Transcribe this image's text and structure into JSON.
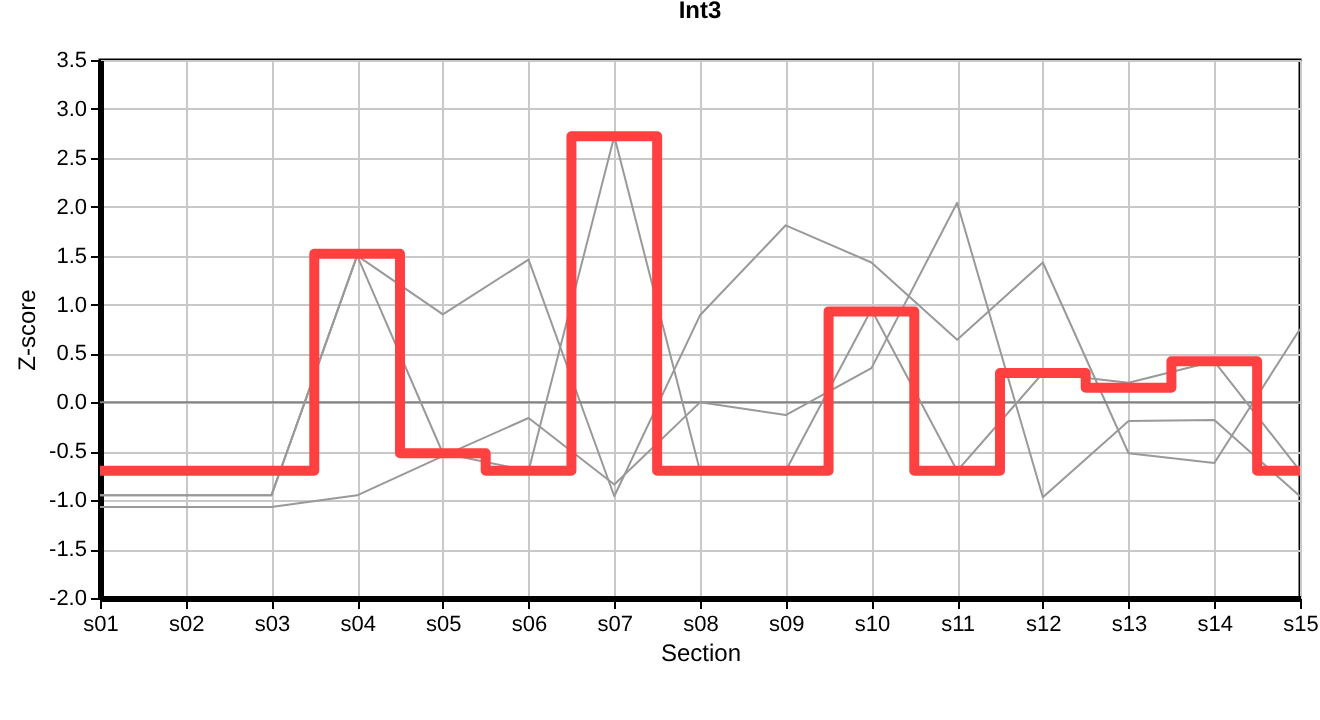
{
  "chart_data": {
    "type": "line",
    "title": "Int3",
    "xlabel": "Section",
    "ylabel": "Z-score",
    "categories": [
      "s01",
      "s02",
      "s03",
      "s04",
      "s05",
      "s06",
      "s07",
      "s08",
      "s09",
      "s10",
      "s11",
      "s12",
      "s13",
      "s14",
      "s15"
    ],
    "series": [
      {
        "color": "#999999",
        "values": [
          -0.95,
          -0.95,
          -0.95,
          1.5,
          0.9,
          1.46,
          -0.96,
          0.89,
          1.81,
          1.43,
          0.64,
          1.43,
          -0.52,
          -0.62,
          0.75
        ]
      },
      {
        "color": "#999999",
        "values": [
          -1.07,
          -1.07,
          -1.07,
          -0.95,
          -0.55,
          -0.16,
          -0.84,
          0.0,
          -0.13,
          0.35,
          2.04,
          -0.97,
          -0.19,
          -0.18,
          -0.96
        ]
      },
      {
        "color": "#999999",
        "values": [
          -0.95,
          -0.95,
          -0.95,
          1.5,
          -0.52,
          -0.7,
          2.72,
          -0.7,
          -0.7,
          0.95,
          -0.7,
          0.3,
          0.2,
          0.42,
          -0.7
        ]
      },
      {
        "type": "step",
        "color": "#ff4040",
        "values": [
          -0.7,
          -0.7,
          -0.7,
          1.52,
          -0.52,
          -0.7,
          2.72,
          -0.7,
          -0.7,
          0.93,
          -0.7,
          0.3,
          0.15,
          0.42,
          -0.7
        ]
      }
    ],
    "ylim": [
      -2.0,
      3.5
    ],
    "yticks": [
      {
        "value": -2,
        "label": "-2.0"
      },
      {
        "value": -1.5,
        "label": "-1.5"
      },
      {
        "value": -1,
        "label": "-1.0"
      },
      {
        "value": -0.5,
        "label": "-0.5"
      },
      {
        "value": 0,
        "label": "0.0"
      },
      {
        "value": 0.5,
        "label": "0.5"
      },
      {
        "value": 1,
        "label": "1.0"
      },
      {
        "value": 1.5,
        "label": "1.5"
      },
      {
        "value": 2,
        "label": "2.0"
      },
      {
        "value": 2.5,
        "label": "2.5"
      },
      {
        "value": 3,
        "label": "3.0"
      },
      {
        "value": 3.5,
        "label": "3.5"
      }
    ],
    "ref_lines": [
      {
        "axis": "y",
        "value": 0,
        "color": "#808080"
      }
    ],
    "grid": true
  }
}
